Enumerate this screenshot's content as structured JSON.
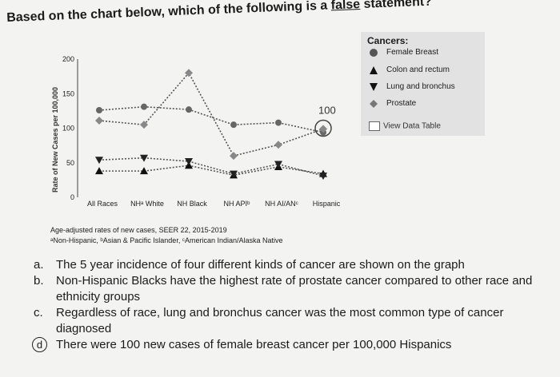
{
  "question": {
    "prefix": "Based on the chart below, which of the following is a",
    "emphasis": "false",
    "suffix": "statement?"
  },
  "legend": {
    "title": "Cancers:",
    "items": [
      {
        "label": "Female Breast",
        "marker": "circle"
      },
      {
        "label": "Colon and rectum",
        "marker": "triangle-up"
      },
      {
        "label": "Lung and bronchus",
        "marker": "triangle-down"
      },
      {
        "label": "Prostate",
        "marker": "diamond"
      }
    ],
    "view_data_label": "View Data Table"
  },
  "chart_data": {
    "type": "line",
    "ylabel": "Rate of New Cases per 100,000",
    "ylim": [
      0,
      200
    ],
    "yticks": [
      0,
      50,
      100,
      150,
      200
    ],
    "categories": [
      "All Races",
      "NHᵃ White",
      "NH Black",
      "NH APIᵇ",
      "NH AI/ANᶜ",
      "Hispanic"
    ],
    "series": [
      {
        "name": "Female Breast",
        "marker": "circle",
        "values": [
          126,
          131,
          127,
          105,
          108,
          94
        ]
      },
      {
        "name": "Colon and rectum",
        "marker": "triangle-up",
        "values": [
          38,
          38,
          46,
          32,
          44,
          34
        ]
      },
      {
        "name": "Lung and bronchus",
        "marker": "triangle-down",
        "values": [
          54,
          57,
          52,
          34,
          48,
          31
        ]
      },
      {
        "name": "Prostate",
        "marker": "diamond",
        "values": [
          111,
          105,
          180,
          60,
          76,
          99
        ]
      }
    ],
    "annotation": {
      "text": "100",
      "category": "Hispanic",
      "value": 100
    }
  },
  "source": {
    "line1": "Age-adjusted rates of new cases, SEER 22, 2015-2019",
    "line2": "ᵃNon-Hispanic, ᵇAsian & Pacific Islander, ᶜAmerican Indian/Alaska Native"
  },
  "options": [
    {
      "letter": "a.",
      "text": "The 5 year incidence of four different kinds of cancer are shown on the graph"
    },
    {
      "letter": "b.",
      "text": "Non-Hispanic Blacks have the highest rate of prostate cancer compared to other race and ethnicity groups"
    },
    {
      "letter": "c.",
      "text": "Regardless of race, lung and bronchus cancer was the most common type of cancer diagnosed"
    },
    {
      "letter": "d",
      "text": "There were 100 new cases of female breast cancer per 100,000 Hispanics"
    }
  ]
}
